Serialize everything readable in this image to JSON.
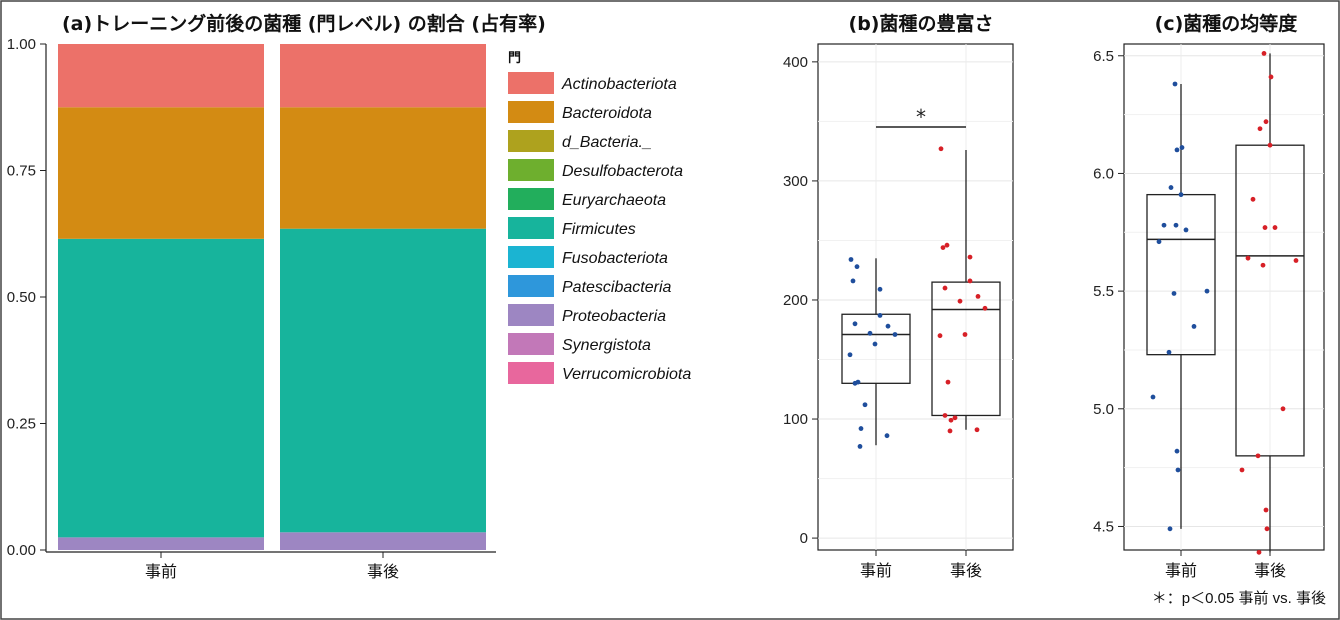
{
  "panel_a": {
    "title": "(a)トレーニング前後の菌種 (門レベル) の割合 (占有率)",
    "legend_title": "門",
    "chart_data": {
      "type": "bar",
      "stacked": true,
      "categories": [
        "事前",
        "事後"
      ],
      "ylim": [
        0,
        1
      ],
      "yticks": [
        "0.00",
        "0.25",
        "0.50",
        "0.75",
        "1.00"
      ],
      "series": [
        {
          "name": "Actinobacteriota",
          "color": "#EC7169",
          "values": [
            0.125,
            0.125
          ]
        },
        {
          "name": "Bacteroidota",
          "color": "#D38B13",
          "values": [
            0.26,
            0.24
          ]
        },
        {
          "name": "d_Bacteria._",
          "color": "#AEA21E",
          "values": [
            0.0,
            0.0
          ]
        },
        {
          "name": "Desulfobacterota",
          "color": "#6EAF2E",
          "values": [
            0.0,
            0.0
          ]
        },
        {
          "name": "Euryarchaeota",
          "color": "#22AE5C",
          "values": [
            0.0,
            0.0
          ]
        },
        {
          "name": "Firmicutes",
          "color": "#17B49C",
          "values": [
            0.59,
            0.6
          ]
        },
        {
          "name": "Fusobacteriota",
          "color": "#1BB4D2",
          "values": [
            0.0,
            0.0
          ]
        },
        {
          "name": "Patescibacteria",
          "color": "#2E97DB",
          "values": [
            0.0,
            0.0
          ]
        },
        {
          "name": "Proteobacteria",
          "color": "#9D86C2",
          "values": [
            0.025,
            0.035
          ]
        },
        {
          "name": "Synergistota",
          "color": "#C278B8",
          "values": [
            0.0,
            0.0
          ]
        },
        {
          "name": "Verrucomicrobiota",
          "color": "#E8679D",
          "values": [
            0.0,
            0.0
          ]
        }
      ]
    }
  },
  "panel_b": {
    "title": "(b)菌種の豊富さ",
    "significance_mark": "*",
    "chart_data": {
      "type": "box",
      "categories": [
        "事前",
        "事後"
      ],
      "ylim": [
        -10,
        415
      ],
      "yticks": [
        0,
        100,
        200,
        300,
        400
      ],
      "boxes": [
        {
          "group": "事前",
          "min": 78,
          "q1": 130,
          "median": 171,
          "q3": 188,
          "max": 235,
          "color": "#1F4E9C",
          "points": [
            234,
            228,
            216,
            209,
            187,
            180,
            178,
            172,
            171,
            163,
            154,
            131,
            130,
            112,
            92,
            86,
            77
          ]
        },
        {
          "group": "事後",
          "min": 91,
          "q1": 103,
          "median": 192,
          "q3": 215,
          "max": 326,
          "color": "#D72027",
          "points": [
            327,
            246,
            244,
            236,
            216,
            210,
            203,
            199,
            193,
            171,
            170,
            131,
            103,
            101,
            99,
            91,
            90
          ]
        }
      ]
    }
  },
  "panel_c": {
    "title": "(c)菌種の均等度",
    "footnote": "＊：p＜0.05 事前 vs. 事後",
    "chart_data": {
      "type": "box",
      "categories": [
        "事前",
        "事後"
      ],
      "ylim": [
        4.4,
        6.55
      ],
      "yticks": [
        "4.5",
        "5.0",
        "5.5",
        "6.0",
        "6.5"
      ],
      "boxes": [
        {
          "group": "事前",
          "min": 4.49,
          "q1": 5.23,
          "median": 5.72,
          "q3": 5.91,
          "max": 6.38,
          "color": "#1F4E9C",
          "points": [
            6.38,
            6.11,
            6.1,
            5.94,
            5.91,
            5.78,
            5.78,
            5.76,
            5.71,
            5.5,
            5.49,
            5.35,
            5.24,
            5.05,
            4.82,
            4.74,
            4.49
          ]
        },
        {
          "group": "事後",
          "min": 4.39,
          "q1": 4.8,
          "median": 5.65,
          "q3": 6.12,
          "max": 6.51,
          "color": "#D72027",
          "points": [
            6.51,
            6.41,
            6.22,
            6.19,
            6.12,
            5.89,
            5.77,
            5.77,
            5.64,
            5.63,
            5.61,
            5.0,
            4.8,
            4.74,
            4.57,
            4.49,
            4.39
          ]
        }
      ]
    }
  }
}
